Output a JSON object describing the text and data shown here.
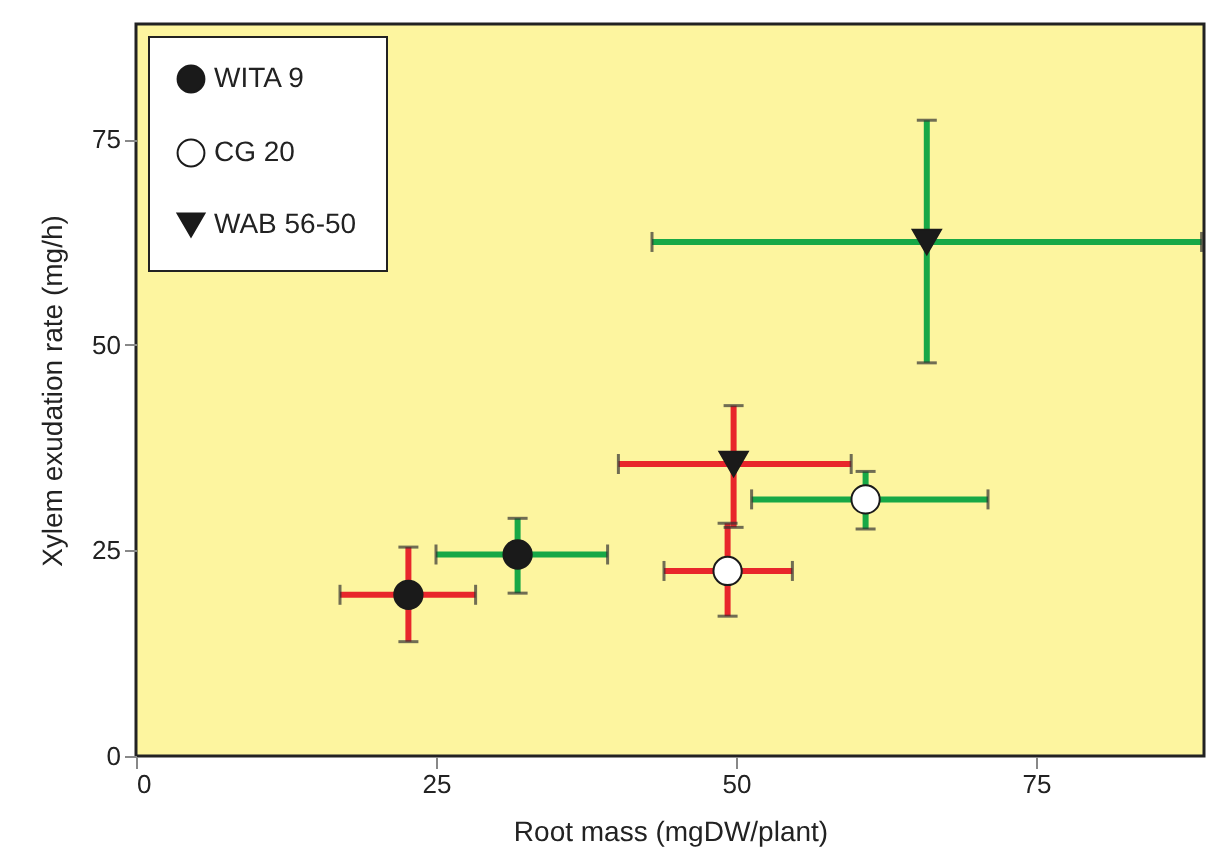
{
  "chart_data": {
    "type": "scatter",
    "xlabel": "Root mass (mgDW/plant)",
    "ylabel": "Xylem exudation rate (mg/h)",
    "xlim": [
      0,
      89
    ],
    "ylim": [
      0,
      89
    ],
    "xticks": [
      0,
      25,
      50,
      75
    ],
    "yticks": [
      0,
      25,
      50,
      75
    ],
    "grid": false,
    "legend": "top left",
    "series": [
      {
        "name": "WITA 9",
        "color": "#1a1a1a",
        "marker": "circle",
        "x": [
          22.7,
          31.8
        ],
        "values": [
          19.6,
          24.5
        ],
        "errors": [
          [
            13.9,
            25.4
          ],
          [
            19.8,
            28.9
          ]
        ],
        "xerrors": [
          [
            17,
            28.3
          ],
          [
            25,
            39.3
          ]
        ]
      },
      {
        "name": "CG 20",
        "color": "#ffffff",
        "marker": "circle",
        "x": [
          49.3,
          60.8
        ],
        "values": [
          22.5,
          31.2
        ],
        "errors": [
          [
            17,
            28.3
          ],
          [
            27.6,
            34.6
          ]
        ],
        "xerrors": [
          [
            44,
            54.7
          ],
          [
            51.3,
            71
          ]
        ]
      },
      {
        "name": "WAB 56-50",
        "color": "#1a1a1a",
        "marker": "triangle",
        "x": [
          49.8,
          65.9
        ],
        "values": [
          35.5,
          62.5
        ],
        "errors": [
          [
            27.8,
            42.6
          ],
          [
            47.8,
            77.3
          ]
        ],
        "xerrors": [
          [
            40.2,
            59.6
          ],
          [
            43,
            88.8
          ]
        ]
      }
    ]
  }
}
